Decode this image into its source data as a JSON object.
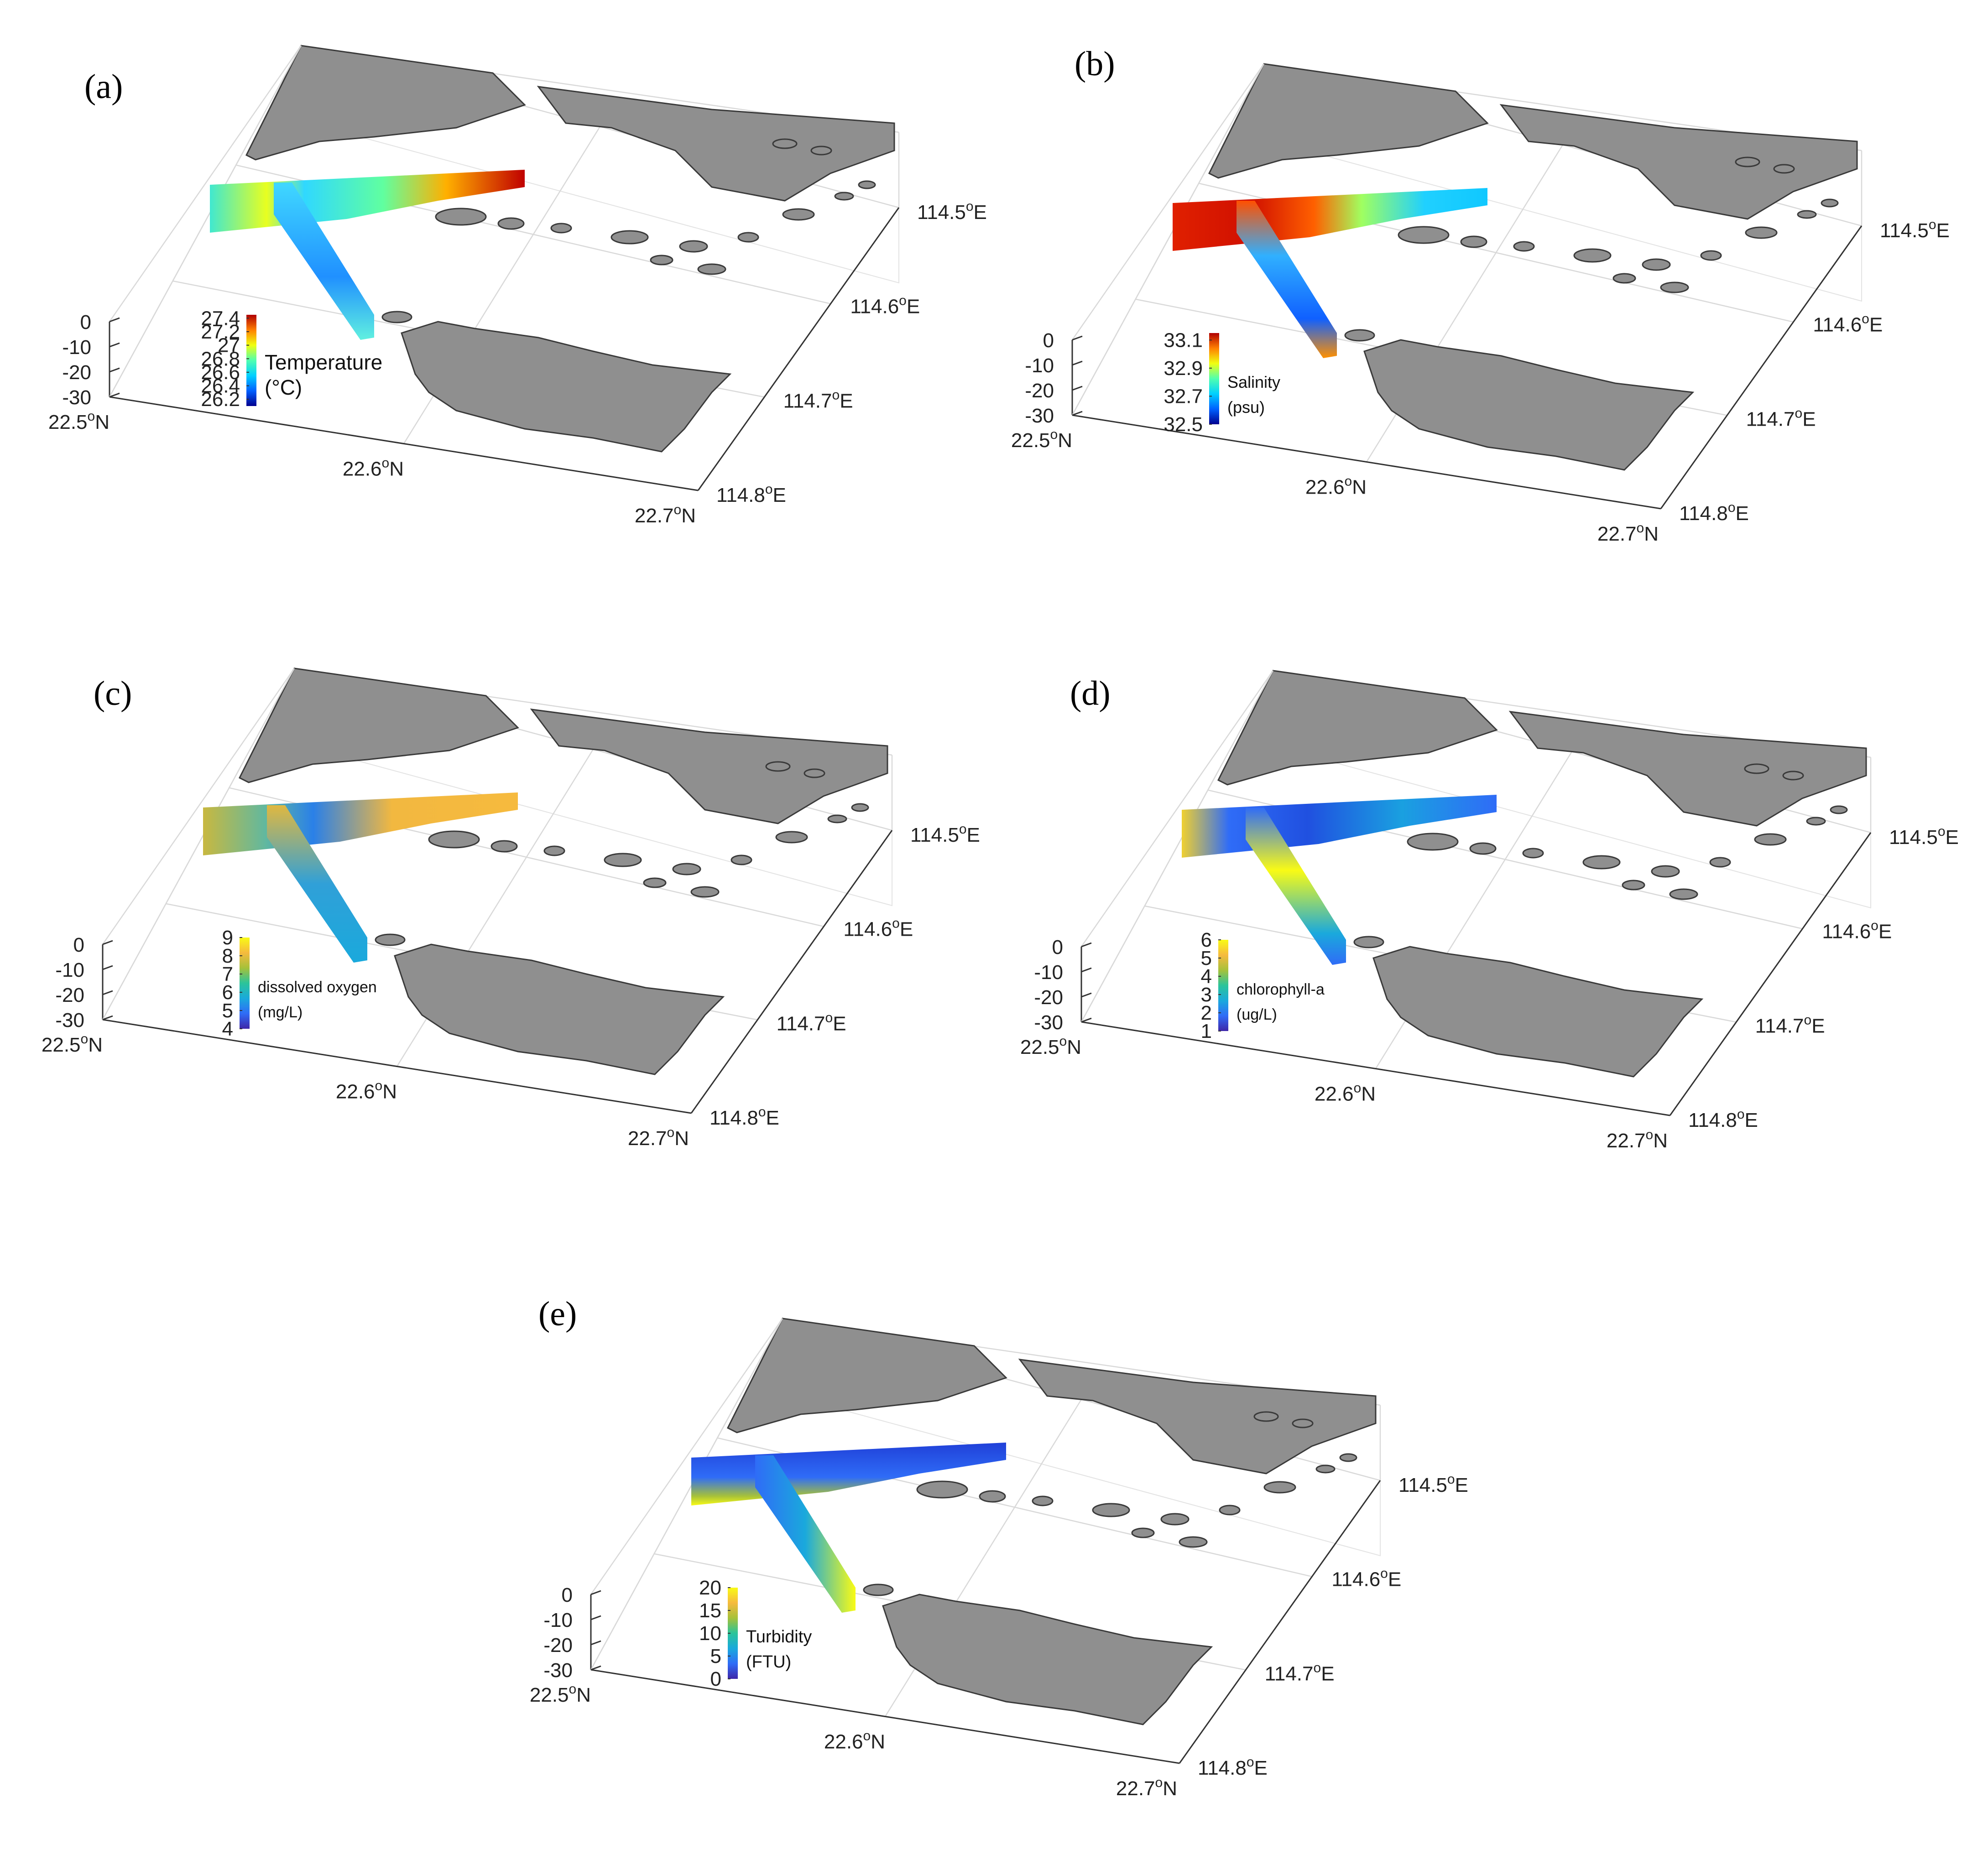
{
  "chart_data": [
    {
      "type": "heatmap",
      "panel": "(a)",
      "colorbar_label": [
        "Temperature",
        "(°C)"
      ],
      "colorbar_ticks": [
        "27.4",
        "27.2",
        "27",
        "26.8",
        "26.6",
        "26.4",
        "26.2"
      ],
      "colorbar_range": [
        26.1,
        27.45
      ],
      "colormap": [
        "#00008f",
        "#0060ff",
        "#00d0ff",
        "#50ffaf",
        "#f0ff10",
        "#ff8000",
        "#b00000"
      ],
      "depth_ticks": [
        "0",
        "-10",
        "-20",
        "-30"
      ],
      "lat_ticks": [
        "22.5°N",
        "22.6°N",
        "22.7°N"
      ],
      "lon_ticks": [
        "114.5°E",
        "114.6°E",
        "114.7°E",
        "114.8°E"
      ]
    },
    {
      "type": "heatmap",
      "panel": "(b)",
      "colorbar_label": [
        "Salinity",
        "(psu)"
      ],
      "colorbar_ticks": [
        "33.1",
        "32.9",
        "32.7",
        "32.5"
      ],
      "colorbar_range": [
        32.5,
        33.15
      ],
      "colormap": [
        "#00008f",
        "#0060ff",
        "#00d0ff",
        "#50ffaf",
        "#f0ff10",
        "#ff8000",
        "#b00000"
      ],
      "depth_ticks": [
        "0",
        "-10",
        "-20",
        "-30"
      ],
      "lat_ticks": [
        "22.5°N",
        "22.6°N",
        "22.7°N"
      ],
      "lon_ticks": [
        "114.5°E",
        "114.6°E",
        "114.7°E",
        "114.8°E"
      ]
    },
    {
      "type": "heatmap",
      "panel": "(c)",
      "colorbar_label": [
        "dissolved oxygen",
        "(mg/L)"
      ],
      "colorbar_ticks": [
        "9",
        "8",
        "7",
        "6",
        "5",
        "4"
      ],
      "colorbar_range": [
        4,
        9
      ],
      "colormap": [
        "#3e26a8",
        "#2f6cf7",
        "#1aa9dc",
        "#2bc49a",
        "#a6c13a",
        "#f6ba3e",
        "#f9fb15"
      ],
      "depth_ticks": [
        "0",
        "-10",
        "-20",
        "-30"
      ],
      "lat_ticks": [
        "22.5°N",
        "22.6°N",
        "22.7°N"
      ],
      "lon_ticks": [
        "114.5°E",
        "114.6°E",
        "114.7°E",
        "114.8°E"
      ]
    },
    {
      "type": "heatmap",
      "panel": "(d)",
      "colorbar_label": [
        "chlorophyll-a",
        "(ug/L)"
      ],
      "colorbar_ticks": [
        "6",
        "5",
        "4",
        "3",
        "2",
        "1"
      ],
      "colorbar_range": [
        1,
        6
      ],
      "colormap": [
        "#3e26a8",
        "#2f6cf7",
        "#1aa9dc",
        "#2bc49a",
        "#a6c13a",
        "#f6ba3e",
        "#f9fb15"
      ],
      "depth_ticks": [
        "0",
        "-10",
        "-20",
        "-30"
      ],
      "lat_ticks": [
        "22.5°N",
        "22.6°N",
        "22.7°N"
      ],
      "lon_ticks": [
        "114.5°E",
        "114.6°E",
        "114.7°E",
        "114.8°E"
      ]
    },
    {
      "type": "heatmap",
      "panel": "(e)",
      "colorbar_label": [
        "Turbidity",
        "(FTU)"
      ],
      "colorbar_ticks": [
        "20",
        "15",
        "10",
        "5",
        "0"
      ],
      "colorbar_range": [
        0,
        20
      ],
      "colormap": [
        "#3e26a8",
        "#2f6cf7",
        "#1aa9dc",
        "#2bc49a",
        "#a6c13a",
        "#f6ba3e",
        "#f9fb15"
      ],
      "depth_ticks": [
        "0",
        "-10",
        "-20",
        "-30"
      ],
      "lat_ticks": [
        "22.5°N",
        "22.6°N",
        "22.7°N"
      ],
      "lon_ticks": [
        "114.5°E",
        "114.6°E",
        "114.7°E",
        "114.8°E"
      ]
    }
  ]
}
